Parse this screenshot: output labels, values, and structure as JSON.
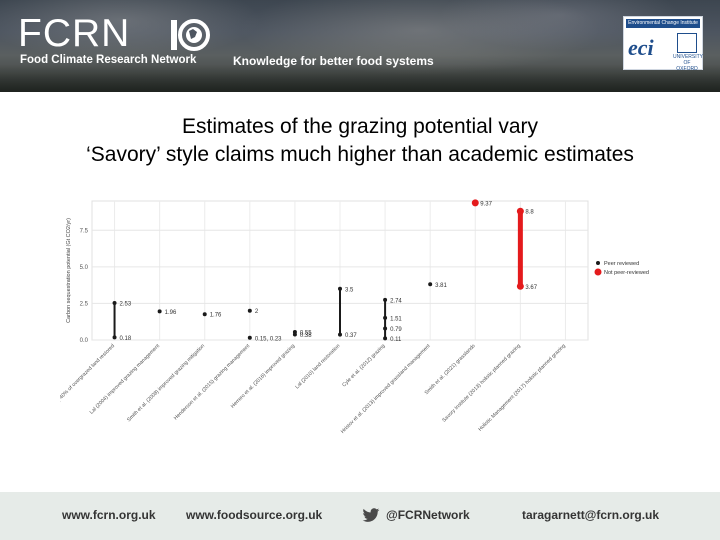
{
  "header": {
    "logo_text": "FCRN",
    "org_name": "Food Climate Research Network",
    "tagline": "Knowledge for better food systems",
    "partner": {
      "top_text": "Environmental Change Institute",
      "logo_text": "eci",
      "oxford_text": "UNIVERSITY OF OXFORD"
    }
  },
  "title": {
    "line1": "Estimates of the grazing potential vary",
    "line2": "‘Savory’ style claims much higher than academic estimates"
  },
  "chart_data": {
    "type": "scatter",
    "ylabel": "Carbon sequestration potential (Gt CO2/yr)",
    "ylim": [
      0,
      9.5
    ],
    "yticks": [
      0.0,
      2.5,
      5.0,
      7.5
    ],
    "ytick_labels": [
      "0.0",
      "2.5",
      "5.0",
      "7.5"
    ],
    "grid": true,
    "legend_position": "right",
    "legend": [
      {
        "label": "Peer reviewed",
        "color": "#1a1a1a"
      },
      {
        "label": "Not peer-reviewed",
        "color": "#e41a1c"
      }
    ],
    "categories": [
      "Conant & Paustian (2002)",
      "Lal (2004)",
      "Smith et al. (2008)",
      "Henderson et al. (2015)",
      "Herrero et al. (2016)",
      "Lal (2010)",
      "Cyle et al. (2012)",
      "Hristov et al. (2013)",
      "Smith et al. (2021)",
      "Savory Institute (2013)",
      "Holistic Management (2017)"
    ],
    "category_labels": [
      "Conant & Paustian (2002) 40% of overgrazed land restored",
      "Lal (2004) improved grazing management",
      "Smith et al. (2008) improved grazing mitigation",
      "Henderson et al. (2015) grazing management",
      "Herrero et al. (2016) improved grazing",
      "Lal (2010) land restoration",
      "Cyle et al. (2012) grazing",
      "Hristov et al. (2013) improved grassland management",
      "Smith et al. (2021) grasslands",
      "Savory Institute (2013) holistic planned grazing",
      "Holistic Management (2017) holistic planned grazing"
    ],
    "series": [
      {
        "name": "Peer reviewed",
        "color": "#1a1a1a",
        "points": [
          {
            "x": 0,
            "y": 2.53,
            "label": "2.53"
          },
          {
            "x": 0,
            "y": 0.18,
            "label": "0.18"
          },
          {
            "x": 1,
            "y": 1.96,
            "label": "1.96"
          },
          {
            "x": 2,
            "y": 1.76,
            "label": "1.76"
          },
          {
            "x": 3,
            "y": 2.0,
            "label": "2"
          },
          {
            "x": 3,
            "y": 0.15,
            "label": "0.15, 0.23"
          },
          {
            "x": 4,
            "y": 0.55,
            "label": "0.55"
          },
          {
            "x": 4,
            "y": 0.38,
            "label": "0.38"
          },
          {
            "x": 5,
            "y": 3.5,
            "label": "3.5"
          },
          {
            "x": 5,
            "y": 0.37,
            "label": "0.37"
          },
          {
            "x": 6,
            "y": 2.74,
            "label": "2.74"
          },
          {
            "x": 6,
            "y": 1.51,
            "label": "1.51"
          },
          {
            "x": 6,
            "y": 0.79,
            "label": "0.79"
          },
          {
            "x": 6,
            "y": 0.11,
            "label": "0.11"
          },
          {
            "x": 7,
            "y": 3.81,
            "label": "3.81"
          }
        ]
      },
      {
        "name": "Not peer-reviewed",
        "color": "#e41a1c",
        "points": [
          {
            "x": 8,
            "y": 9.37,
            "label": "9.37"
          },
          {
            "x": 9,
            "y": 8.8,
            "label": "8.8"
          },
          {
            "x": 9,
            "y": 3.67,
            "label": "3.67"
          }
        ]
      }
    ],
    "ranges": [
      {
        "x": 0,
        "low": 0.18,
        "high": 2.53,
        "color": "#1a1a1a"
      },
      {
        "x": 5,
        "low": 0.37,
        "high": 3.5,
        "color": "#1a1a1a"
      },
      {
        "x": 6,
        "low": 0.11,
        "high": 2.74,
        "color": "#1a1a1a"
      },
      {
        "x": 9,
        "low": 3.67,
        "high": 8.8,
        "color": "#e41a1c"
      }
    ]
  },
  "footer": {
    "link1": "www.fcrn.org.uk",
    "link2": "www.foodsource.org.uk",
    "twitter": "@FCRNetwork",
    "email": "taragarnett@fcrn.org.uk"
  }
}
